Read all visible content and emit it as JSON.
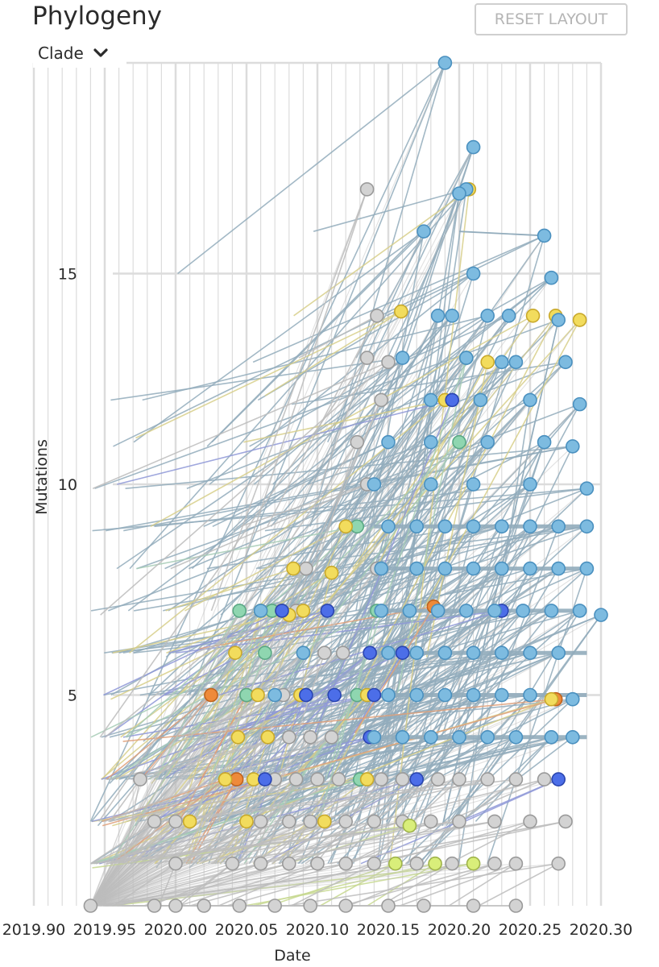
{
  "header": {
    "title": "Phylogeny",
    "reset_label": "RESET LAYOUT"
  },
  "color_by": {
    "label": "Clade",
    "icon": "chevron-down-icon"
  },
  "colors": {
    "clade_a": "#7dbbe0",
    "clade_b": "#f2dc5d",
    "clade_c": "#4c6ee8",
    "clade_d": "#8fd6b0",
    "clade_e": "#ee8a3a",
    "clade_f": "#d9ee7a",
    "unassigned": "#d3d3d3",
    "branch_gray": "#bdbdbd",
    "branch_blue": "#92acbc",
    "grid": "#dcdcdc"
  },
  "chart_data": {
    "type": "scatter",
    "title": "Phylogeny",
    "xlabel": "Date",
    "ylabel": "Mutations",
    "xlim": [
      2019.9,
      2020.3
    ],
    "ylim": [
      0,
      20
    ],
    "x_ticks": [
      "2019.90",
      "2019.95",
      "2020.00",
      "2020.05",
      "2020.10",
      "2020.15",
      "2020.20",
      "2020.25",
      "2020.30"
    ],
    "y_ticks": [
      "5",
      "10",
      "15"
    ],
    "grid": true,
    "legend": "none",
    "root": {
      "x": 2019.94,
      "y": 0
    },
    "series": [
      {
        "name": "clade_a",
        "points": [
          [
            2020.19,
            20
          ],
          [
            2020.21,
            18
          ],
          [
            2020.205,
            17
          ],
          [
            2020.2,
            16.9
          ],
          [
            2020.175,
            16
          ],
          [
            2020.26,
            15.9
          ],
          [
            2020.21,
            15
          ],
          [
            2020.265,
            14.9
          ],
          [
            2020.185,
            14
          ],
          [
            2020.195,
            14
          ],
          [
            2020.22,
            14
          ],
          [
            2020.235,
            14
          ],
          [
            2020.27,
            13.9
          ],
          [
            2020.16,
            13
          ],
          [
            2020.205,
            13
          ],
          [
            2020.23,
            12.9
          ],
          [
            2020.24,
            12.9
          ],
          [
            2020.275,
            12.9
          ],
          [
            2020.18,
            12
          ],
          [
            2020.215,
            12
          ],
          [
            2020.25,
            12
          ],
          [
            2020.285,
            11.9
          ],
          [
            2020.15,
            11
          ],
          [
            2020.18,
            11
          ],
          [
            2020.22,
            11
          ],
          [
            2020.26,
            11
          ],
          [
            2020.28,
            10.9
          ],
          [
            2020.14,
            10
          ],
          [
            2020.18,
            10
          ],
          [
            2020.21,
            10
          ],
          [
            2020.25,
            10
          ],
          [
            2020.29,
            9.9
          ],
          [
            2020.15,
            9
          ],
          [
            2020.17,
            9
          ],
          [
            2020.19,
            9
          ],
          [
            2020.21,
            9
          ],
          [
            2020.23,
            9
          ],
          [
            2020.25,
            9
          ],
          [
            2020.27,
            9
          ],
          [
            2020.29,
            9
          ],
          [
            2020.145,
            8
          ],
          [
            2020.17,
            8
          ],
          [
            2020.19,
            8
          ],
          [
            2020.21,
            8
          ],
          [
            2020.23,
            8
          ],
          [
            2020.25,
            8
          ],
          [
            2020.27,
            8
          ],
          [
            2020.29,
            8
          ],
          [
            2020.06,
            7
          ],
          [
            2020.145,
            7
          ],
          [
            2020.165,
            7
          ],
          [
            2020.185,
            7
          ],
          [
            2020.205,
            7
          ],
          [
            2020.225,
            7
          ],
          [
            2020.245,
            7
          ],
          [
            2020.265,
            7
          ],
          [
            2020.285,
            7
          ],
          [
            2020.3,
            6.9
          ],
          [
            2020.09,
            6
          ],
          [
            2020.15,
            6
          ],
          [
            2020.17,
            6
          ],
          [
            2020.19,
            6
          ],
          [
            2020.21,
            6
          ],
          [
            2020.23,
            6
          ],
          [
            2020.25,
            6
          ],
          [
            2020.27,
            6
          ],
          [
            2020.07,
            5
          ],
          [
            2020.15,
            5
          ],
          [
            2020.17,
            5
          ],
          [
            2020.19,
            5
          ],
          [
            2020.21,
            5
          ],
          [
            2020.23,
            5
          ],
          [
            2020.25,
            5
          ],
          [
            2020.28,
            4.9
          ],
          [
            2020.14,
            4
          ],
          [
            2020.16,
            4
          ],
          [
            2020.18,
            4
          ],
          [
            2020.2,
            4
          ],
          [
            2020.22,
            4
          ],
          [
            2020.24,
            4
          ],
          [
            2020.265,
            4
          ],
          [
            2020.28,
            4
          ]
        ]
      },
      {
        "name": "clade_b",
        "points": [
          [
            2020.207,
            17
          ],
          [
            2020.268,
            14
          ],
          [
            2020.252,
            14
          ],
          [
            2020.285,
            13.9
          ],
          [
            2020.159,
            14.1
          ],
          [
            2020.22,
            12.9
          ],
          [
            2020.19,
            12
          ],
          [
            2020.12,
            9
          ],
          [
            2020.083,
            8
          ],
          [
            2020.11,
            7.9
          ],
          [
            2020.06,
            7
          ],
          [
            2020.075,
            7
          ],
          [
            2020.09,
            7
          ],
          [
            2020.08,
            6.9
          ],
          [
            2020.042,
            6
          ],
          [
            2020.058,
            5
          ],
          [
            2020.088,
            5
          ],
          [
            2020.135,
            5
          ],
          [
            2020.044,
            4
          ],
          [
            2020.065,
            4
          ],
          [
            2020.035,
            3
          ],
          [
            2020.055,
            3
          ],
          [
            2020.135,
            3
          ],
          [
            2020.01,
            2
          ],
          [
            2020.05,
            2
          ],
          [
            2020.105,
            2
          ],
          [
            2020.265,
            4.9
          ]
        ]
      },
      {
        "name": "clade_c",
        "points": [
          [
            2020.075,
            7
          ],
          [
            2020.107,
            7
          ],
          [
            2020.092,
            5
          ],
          [
            2020.112,
            5
          ],
          [
            2020.14,
            5
          ],
          [
            2020.137,
            6
          ],
          [
            2020.16,
            6
          ],
          [
            2020.137,
            4
          ],
          [
            2020.063,
            3
          ],
          [
            2020.17,
            3
          ],
          [
            2020.195,
            12
          ],
          [
            2020.27,
            3
          ],
          [
            2020.23,
            7
          ]
        ]
      },
      {
        "name": "clade_d",
        "points": [
          [
            2020.128,
            9
          ],
          [
            2020.045,
            7
          ],
          [
            2020.068,
            7
          ],
          [
            2020.142,
            7
          ],
          [
            2020.05,
            5
          ],
          [
            2020.128,
            5
          ],
          [
            2020.063,
            6
          ],
          [
            2020.205,
            13
          ],
          [
            2020.2,
            11
          ],
          [
            2020.13,
            3
          ]
        ]
      },
      {
        "name": "clade_e",
        "points": [
          [
            2020.025,
            5
          ],
          [
            2020.035,
            3
          ],
          [
            2020.043,
            3
          ],
          [
            2020.05,
            5
          ],
          [
            2020.182,
            7.1
          ],
          [
            2020.268,
            4.9
          ]
        ]
      },
      {
        "name": "clade_f",
        "points": [
          [
            2020.165,
            1.9
          ],
          [
            2020.155,
            1
          ],
          [
            2020.183,
            1
          ],
          [
            2020.21,
            1
          ]
        ]
      },
      {
        "name": "unassigned",
        "points": [
          [
            2020.135,
            17
          ],
          [
            2020.142,
            14
          ],
          [
            2020.135,
            13
          ],
          [
            2020.15,
            12.9
          ],
          [
            2020.145,
            12
          ],
          [
            2020.128,
            11
          ],
          [
            2020.135,
            10
          ],
          [
            2020.092,
            8
          ],
          [
            2020.142,
            8
          ],
          [
            2020.085,
            7
          ],
          [
            2020.09,
            6
          ],
          [
            2020.105,
            6
          ],
          [
            2020.118,
            6
          ],
          [
            2020.076,
            5
          ],
          [
            2020.065,
            4
          ],
          [
            2020.08,
            4
          ],
          [
            2020.095,
            4
          ],
          [
            2020.11,
            4
          ],
          [
            2019.975,
            3
          ],
          [
            2020.07,
            3
          ],
          [
            2020.085,
            3
          ],
          [
            2020.1,
            3
          ],
          [
            2020.115,
            3
          ],
          [
            2020.145,
            3
          ],
          [
            2020.16,
            3
          ],
          [
            2020.185,
            3
          ],
          [
            2020.2,
            3
          ],
          [
            2020.22,
            3
          ],
          [
            2020.24,
            3
          ],
          [
            2020.26,
            3
          ],
          [
            2019.985,
            2
          ],
          [
            2020.0,
            2
          ],
          [
            2020.06,
            2
          ],
          [
            2020.08,
            2
          ],
          [
            2020.095,
            2
          ],
          [
            2020.12,
            2
          ],
          [
            2020.14,
            2
          ],
          [
            2020.16,
            2
          ],
          [
            2020.18,
            2
          ],
          [
            2020.2,
            2
          ],
          [
            2020.225,
            2
          ],
          [
            2020.25,
            2
          ],
          [
            2020.275,
            2
          ],
          [
            2020.0,
            1
          ],
          [
            2020.04,
            1
          ],
          [
            2020.06,
            1
          ],
          [
            2020.08,
            1
          ],
          [
            2020.1,
            1
          ],
          [
            2020.12,
            1
          ],
          [
            2020.14,
            1
          ],
          [
            2020.17,
            1
          ],
          [
            2020.195,
            1
          ],
          [
            2020.225,
            1
          ],
          [
            2020.24,
            1
          ],
          [
            2020.27,
            1
          ],
          [
            2019.985,
            0
          ],
          [
            2020.0,
            0
          ],
          [
            2020.02,
            0
          ],
          [
            2020.045,
            0
          ],
          [
            2020.07,
            0
          ],
          [
            2020.095,
            0
          ],
          [
            2020.12,
            0
          ],
          [
            2020.15,
            0
          ],
          [
            2020.175,
            0
          ],
          [
            2020.21,
            0
          ],
          [
            2020.24,
            0
          ],
          [
            2019.94,
            0
          ]
        ]
      }
    ]
  }
}
